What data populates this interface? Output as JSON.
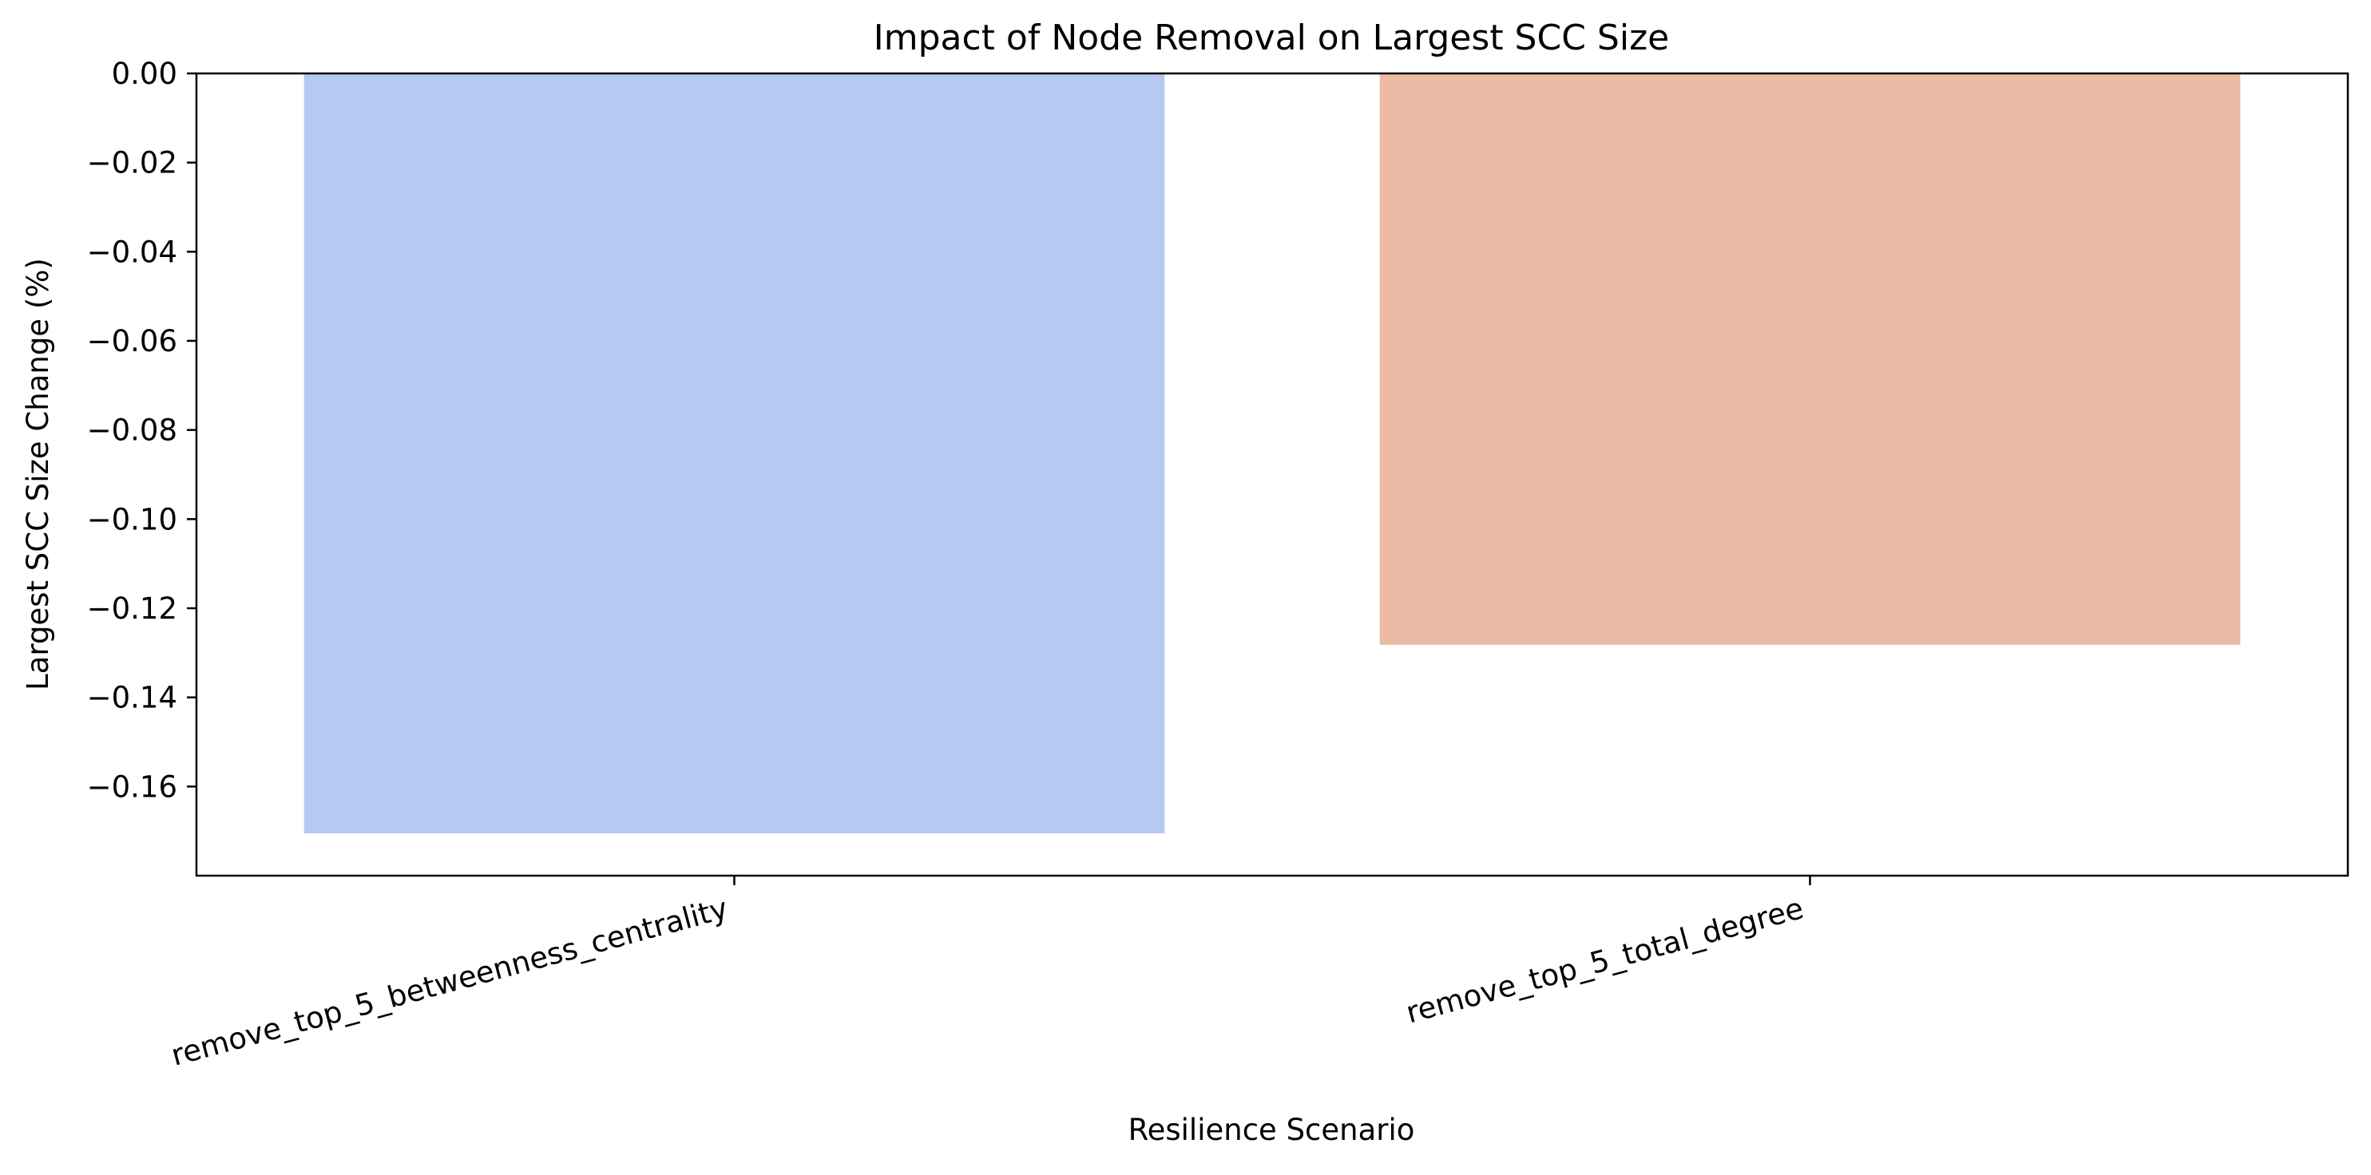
{
  "chart_data": {
    "type": "bar",
    "title": "Impact of Node Removal on Largest SCC Size",
    "xlabel": "Resilience Scenario",
    "ylabel": "Largest SCC Size Change (%)",
    "categories": [
      "remove_top_5_betweenness_centrality",
      "remove_top_5_total_degree"
    ],
    "values": [
      -0.1705,
      -0.1282
    ],
    "colors": [
      "#b5c9f1",
      "#ebbba6"
    ],
    "ylim": [
      -0.18,
      0.0
    ],
    "yticks": [
      0.0,
      -0.02,
      -0.04,
      -0.06,
      -0.08,
      -0.1,
      -0.12,
      -0.14,
      -0.16
    ],
    "ytick_labels": [
      "0.00",
      "−0.02",
      "−0.04",
      "−0.06",
      "−0.08",
      "−0.10",
      "−0.12",
      "−0.14",
      "−0.16"
    ],
    "grid": false,
    "legend": "none"
  }
}
